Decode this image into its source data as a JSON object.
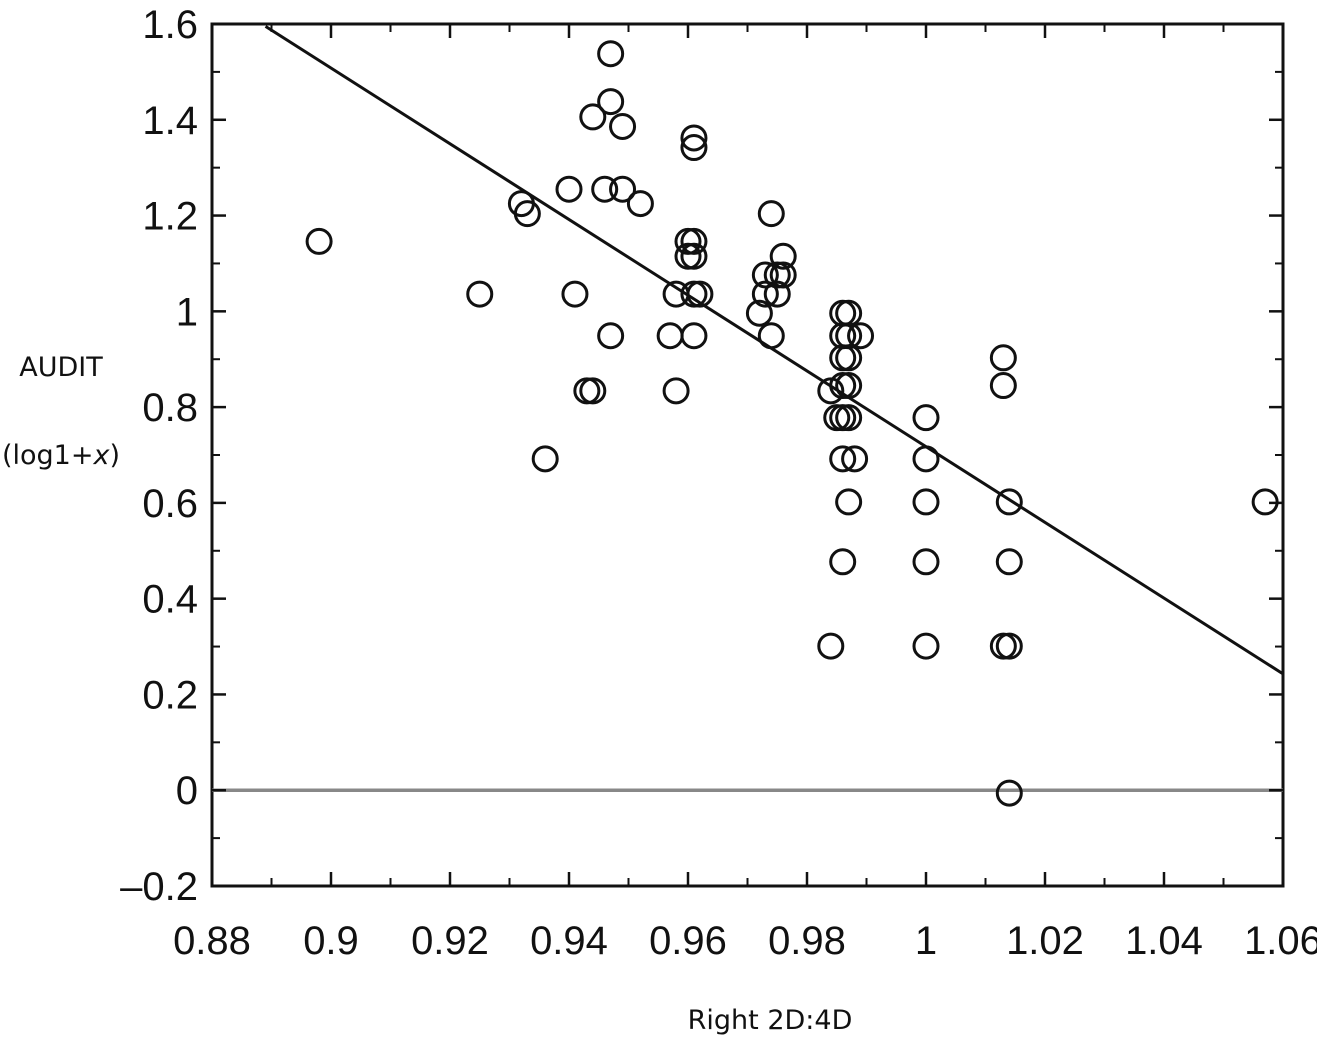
{
  "chart_data": {
    "type": "scatter",
    "title": "",
    "xlabel": "Right 2D:4D",
    "ylabel_lines": [
      "AUDIT",
      "(log1+x)"
    ],
    "xlim": [
      0.88,
      1.06
    ],
    "ylim": [
      -0.2,
      1.6
    ],
    "x_ticks": [
      0.88,
      0.9,
      0.92,
      0.94,
      0.96,
      0.98,
      1,
      1.02,
      1.04,
      1.06
    ],
    "x_tick_labels": [
      "0.88",
      "0.9",
      "0.92",
      "0.94",
      "0.96",
      "0.98",
      "1",
      "1.02",
      "1.04",
      "1.06"
    ],
    "y_ticks": [
      -0.2,
      0,
      0.2,
      0.4,
      0.6,
      0.8,
      1,
      1.2,
      1.4,
      1.6
    ],
    "y_tick_labels": [
      "–0.2",
      "0",
      "0.2",
      "0.4",
      "0.6",
      "0.8",
      "1",
      "1.2",
      "1.4",
      "1.6"
    ],
    "grid": false,
    "reference_line": {
      "y": 0,
      "color": "#888888"
    },
    "trend_line": {
      "x": [
        0.889,
        1.06
      ],
      "y": [
        1.595,
        0.243
      ],
      "color": "#111111"
    },
    "series": [
      {
        "marker": "open-circle",
        "color": "#111111",
        "points": [
          [
            0.898,
            1.146
          ],
          [
            0.925,
            1.036
          ],
          [
            0.932,
            1.225
          ],
          [
            0.933,
            1.204
          ],
          [
            0.936,
            0.692
          ],
          [
            0.94,
            1.255
          ],
          [
            0.941,
            1.036
          ],
          [
            0.943,
            0.834
          ],
          [
            0.944,
            0.834
          ],
          [
            0.944,
            1.406
          ],
          [
            0.946,
            1.255
          ],
          [
            0.947,
            1.538
          ],
          [
            0.947,
            1.438
          ],
          [
            0.947,
            0.949
          ],
          [
            0.949,
            1.255
          ],
          [
            0.949,
            1.386
          ],
          [
            0.952,
            1.225
          ],
          [
            0.957,
            0.949
          ],
          [
            0.958,
            1.036
          ],
          [
            0.958,
            0.834
          ],
          [
            0.96,
            1.146
          ],
          [
            0.96,
            1.115
          ],
          [
            0.961,
            1.146
          ],
          [
            0.961,
            1.115
          ],
          [
            0.961,
            1.362
          ],
          [
            0.961,
            1.342
          ],
          [
            0.961,
            0.949
          ],
          [
            0.961,
            1.036
          ],
          [
            0.962,
            1.036
          ],
          [
            0.972,
            0.996
          ],
          [
            0.973,
            1.076
          ],
          [
            0.973,
            1.036
          ],
          [
            0.974,
            1.204
          ],
          [
            0.974,
            0.949
          ],
          [
            0.975,
            1.036
          ],
          [
            0.975,
            1.076
          ],
          [
            0.976,
            1.115
          ],
          [
            0.976,
            1.076
          ],
          [
            0.984,
            0.834
          ],
          [
            0.984,
            0.301
          ],
          [
            0.985,
            0.778
          ],
          [
            0.986,
            0.996
          ],
          [
            0.986,
            0.949
          ],
          [
            0.986,
            0.903
          ],
          [
            0.986,
            0.845
          ],
          [
            0.986,
            0.778
          ],
          [
            0.986,
            0.692
          ],
          [
            0.986,
            0.477
          ],
          [
            0.987,
            0.996
          ],
          [
            0.987,
            0.949
          ],
          [
            0.987,
            0.903
          ],
          [
            0.987,
            0.845
          ],
          [
            0.987,
            0.778
          ],
          [
            0.987,
            0.602
          ],
          [
            0.988,
            0.692
          ],
          [
            0.989,
            0.949
          ],
          [
            1.0,
            0.778
          ],
          [
            1.0,
            0.692
          ],
          [
            1.0,
            0.602
          ],
          [
            1.0,
            0.477
          ],
          [
            1.0,
            0.301
          ],
          [
            1.013,
            0.903
          ],
          [
            1.013,
            0.845
          ],
          [
            1.013,
            0.301
          ],
          [
            1.014,
            0.301
          ],
          [
            1.014,
            0.602
          ],
          [
            1.014,
            0.477
          ],
          [
            1.014,
            -0.006
          ],
          [
            1.057,
            0.602
          ]
        ]
      }
    ]
  }
}
